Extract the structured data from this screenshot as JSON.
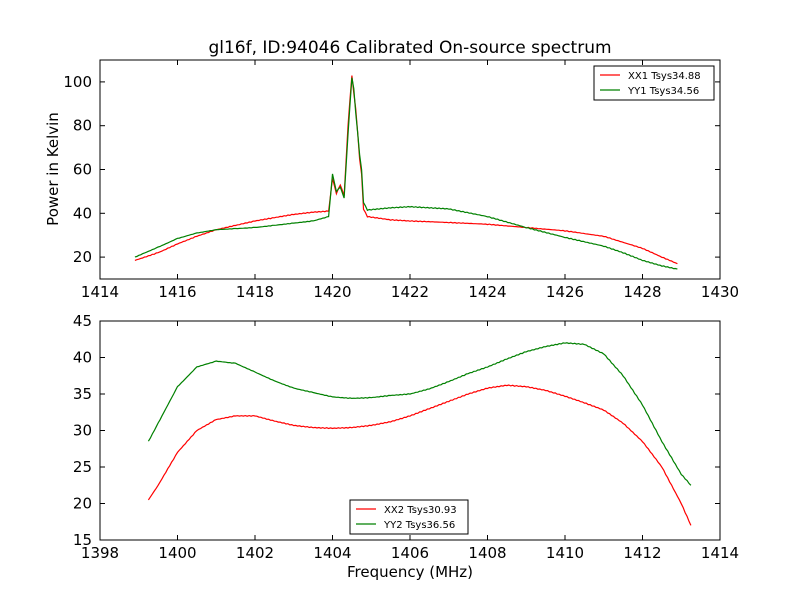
{
  "figure": {
    "title": "gl16f, ID:94046 Calibrated On-source spectrum"
  },
  "chart_data": [
    {
      "type": "line",
      "ylabel": "Power in Kelvin",
      "xlabel": "",
      "xlim": [
        1414,
        1430
      ],
      "ylim": [
        10,
        110
      ],
      "xticks": [
        1414,
        1416,
        1418,
        1420,
        1422,
        1424,
        1426,
        1428,
        1430
      ],
      "yticks": [
        20,
        40,
        60,
        80,
        100
      ],
      "legend_position": "top-right",
      "series": [
        {
          "name": "XX1 Tsys34.88",
          "color": "#ff0000",
          "points": [
            [
              1414.9,
              18.5
            ],
            [
              1415.5,
              22
            ],
            [
              1416.0,
              26
            ],
            [
              1416.5,
              29.5
            ],
            [
              1417.0,
              32.5
            ],
            [
              1417.5,
              34.5
            ],
            [
              1418.0,
              36.5
            ],
            [
              1418.5,
              38
            ],
            [
              1419.0,
              39.5
            ],
            [
              1419.5,
              40.5
            ],
            [
              1419.9,
              41
            ],
            [
              1420.0,
              56
            ],
            [
              1420.1,
              49
            ],
            [
              1420.2,
              53
            ],
            [
              1420.3,
              48
            ],
            [
              1420.4,
              80
            ],
            [
              1420.5,
              103
            ],
            [
              1420.55,
              95
            ],
            [
              1420.6,
              88
            ],
            [
              1420.7,
              65
            ],
            [
              1420.75,
              58
            ],
            [
              1420.8,
              42
            ],
            [
              1420.9,
              38.5
            ],
            [
              1421.5,
              37
            ],
            [
              1422.0,
              36.5
            ],
            [
              1423.0,
              35.8
            ],
            [
              1424.0,
              35
            ],
            [
              1425.0,
              33.5
            ],
            [
              1426.0,
              32
            ],
            [
              1427.0,
              29.5
            ],
            [
              1428.0,
              24
            ],
            [
              1428.5,
              20
            ],
            [
              1428.9,
              17
            ]
          ]
        },
        {
          "name": "YY1 Tsys34.56",
          "color": "#008000",
          "points": [
            [
              1414.9,
              20
            ],
            [
              1415.5,
              24.5
            ],
            [
              1416.0,
              28.5
            ],
            [
              1416.5,
              31
            ],
            [
              1417.0,
              32.5
            ],
            [
              1417.5,
              33
            ],
            [
              1418.0,
              33.5
            ],
            [
              1418.5,
              34.5
            ],
            [
              1419.0,
              35.5
            ],
            [
              1419.5,
              36.5
            ],
            [
              1419.9,
              38.5
            ],
            [
              1420.0,
              58
            ],
            [
              1420.1,
              50
            ],
            [
              1420.2,
              52
            ],
            [
              1420.3,
              47
            ],
            [
              1420.4,
              76
            ],
            [
              1420.5,
              102
            ],
            [
              1420.55,
              97
            ],
            [
              1420.6,
              86
            ],
            [
              1420.7,
              67
            ],
            [
              1420.75,
              60
            ],
            [
              1420.8,
              45
            ],
            [
              1420.9,
              41.5
            ],
            [
              1421.5,
              42.5
            ],
            [
              1422.0,
              43
            ],
            [
              1422.5,
              42.5
            ],
            [
              1423.0,
              42
            ],
            [
              1424.0,
              38.5
            ],
            [
              1425.0,
              33.5
            ],
            [
              1426.0,
              29
            ],
            [
              1427.0,
              25
            ],
            [
              1427.5,
              22
            ],
            [
              1428.0,
              18.5
            ],
            [
              1428.5,
              16
            ],
            [
              1428.9,
              14.5
            ]
          ]
        }
      ]
    },
    {
      "type": "line",
      "ylabel": "",
      "xlabel": "Frequency (MHz)",
      "xlim": [
        1398,
        1414
      ],
      "ylim": [
        15,
        45
      ],
      "xticks": [
        1398,
        1400,
        1402,
        1404,
        1406,
        1408,
        1410,
        1412,
        1414
      ],
      "yticks": [
        15,
        20,
        25,
        30,
        35,
        40,
        45
      ],
      "legend_position": "bottom-center",
      "series": [
        {
          "name": "XX2 Tsys30.93",
          "color": "#ff0000",
          "points": [
            [
              1399.25,
              20.5
            ],
            [
              1399.5,
              22.5
            ],
            [
              1400.0,
              27
            ],
            [
              1400.5,
              30
            ],
            [
              1401.0,
              31.5
            ],
            [
              1401.5,
              32
            ],
            [
              1402.0,
              32
            ],
            [
              1402.5,
              31.3
            ],
            [
              1403.0,
              30.7
            ],
            [
              1403.5,
              30.4
            ],
            [
              1404.0,
              30.3
            ],
            [
              1404.5,
              30.4
            ],
            [
              1405.0,
              30.7
            ],
            [
              1405.5,
              31.2
            ],
            [
              1406.0,
              32
            ],
            [
              1406.5,
              33
            ],
            [
              1407.0,
              34
            ],
            [
              1407.5,
              35
            ],
            [
              1408.0,
              35.8
            ],
            [
              1408.5,
              36.2
            ],
            [
              1409.0,
              36
            ],
            [
              1409.5,
              35.5
            ],
            [
              1410.0,
              34.7
            ],
            [
              1410.5,
              33.8
            ],
            [
              1411.0,
              32.8
            ],
            [
              1411.5,
              31
            ],
            [
              1412.0,
              28.5
            ],
            [
              1412.5,
              25
            ],
            [
              1413.0,
              20
            ],
            [
              1413.25,
              17
            ]
          ]
        },
        {
          "name": "YY2 Tsys36.56",
          "color": "#008000",
          "points": [
            [
              1399.25,
              28.5
            ],
            [
              1399.5,
              31
            ],
            [
              1400.0,
              36
            ],
            [
              1400.5,
              38.7
            ],
            [
              1401.0,
              39.5
            ],
            [
              1401.5,
              39.2
            ],
            [
              1402.0,
              38
            ],
            [
              1402.5,
              36.8
            ],
            [
              1403.0,
              35.8
            ],
            [
              1403.5,
              35.2
            ],
            [
              1404.0,
              34.6
            ],
            [
              1404.5,
              34.4
            ],
            [
              1405.0,
              34.5
            ],
            [
              1405.5,
              34.8
            ],
            [
              1406.0,
              35
            ],
            [
              1406.5,
              35.7
            ],
            [
              1407.0,
              36.7
            ],
            [
              1407.5,
              37.8
            ],
            [
              1408.0,
              38.7
            ],
            [
              1408.5,
              39.8
            ],
            [
              1409.0,
              40.8
            ],
            [
              1409.5,
              41.5
            ],
            [
              1410.0,
              42
            ],
            [
              1410.5,
              41.8
            ],
            [
              1411.0,
              40.5
            ],
            [
              1411.5,
              37.5
            ],
            [
              1412.0,
              33.5
            ],
            [
              1412.5,
              28.5
            ],
            [
              1413.0,
              24
            ],
            [
              1413.25,
              22.5
            ]
          ]
        }
      ]
    }
  ]
}
